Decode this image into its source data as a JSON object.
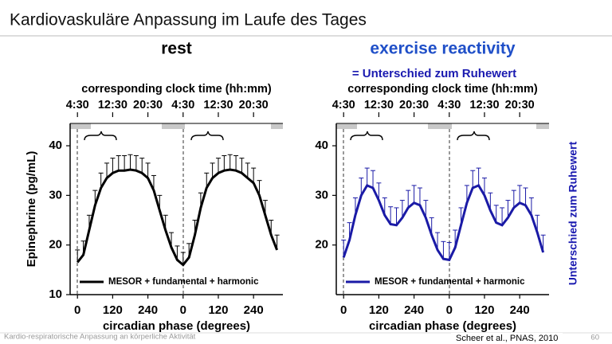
{
  "header": {
    "title": "Kardiovaskuläre Anpassung im Laufe des Tages"
  },
  "annotations": {
    "equals_note": "= Unterschied zum Ruhewert",
    "side_note": "Unterschied zum Ruhewert"
  },
  "footer": {
    "course": "Kardio-respiratorische Anpassung an körperliche Aktivität",
    "citation": "Scheer et al., PNAS, 2010",
    "page": "60"
  },
  "chart_data": [
    {
      "type": "line",
      "title": "rest",
      "title_color": "#000000",
      "top_axis_label": "corresponding clock time (hh:mm)",
      "xlabel": "circadian phase (degrees)",
      "ylabel": "Epinephrine (pg/mL)",
      "x": [
        0,
        20,
        40,
        60,
        80,
        100,
        120,
        140,
        160,
        180,
        200,
        220,
        240,
        260,
        280,
        300,
        320,
        340,
        360,
        380,
        400,
        420,
        440,
        460,
        480,
        500,
        520,
        540,
        560,
        580,
        600,
        620,
        640,
        660,
        680
      ],
      "xlim": [
        -25,
        700
      ],
      "xticks": [
        0,
        120,
        240,
        {
          "value": 360,
          "label": "0"
        },
        {
          "value": 480,
          "label": "120"
        },
        {
          "value": 600,
          "label": "240"
        }
      ],
      "xticks_top": [
        {
          "value": 0,
          "label": "4:30"
        },
        {
          "value": 120,
          "label": "12:30"
        },
        {
          "value": 240,
          "label": "20:30"
        },
        {
          "value": 360,
          "label": "4:30"
        },
        {
          "value": 480,
          "label": "12:30"
        },
        {
          "value": 600,
          "label": "20:30"
        }
      ],
      "ylim": [
        10,
        44.5
      ],
      "yticks": [
        10,
        20,
        30,
        40
      ],
      "legend": "lower left",
      "series": [
        {
          "name": "MESOR + fundamental + harmonic",
          "color": "#000000",
          "values": [
            16.5,
            18,
            23,
            28,
            31.5,
            33.5,
            34.5,
            35,
            35,
            35.2,
            35,
            34.5,
            33.5,
            31,
            27,
            23,
            19.5,
            17,
            16,
            17.5,
            22,
            27.5,
            31.5,
            33.5,
            34.5,
            35,
            35.2,
            35,
            34.5,
            33.5,
            32.5,
            30,
            26,
            22,
            19
          ],
          "errors": [
            2.5,
            2.8,
            3,
            3,
            3,
            3,
            3,
            3,
            3,
            3,
            3,
            3,
            3,
            3,
            3,
            3,
            3,
            2.8,
            2.5,
            2.8,
            3,
            3,
            3,
            3,
            3,
            3,
            3,
            3,
            3,
            3,
            3,
            3,
            3,
            3,
            3
          ]
        }
      ]
    },
    {
      "type": "line",
      "title": "exercise reactivity",
      "title_color": "#1f4fc8",
      "top_axis_label": "corresponding clock time (hh:mm)",
      "xlabel": "circadian phase (degrees)",
      "x": [
        0,
        20,
        40,
        60,
        80,
        100,
        120,
        140,
        160,
        180,
        200,
        220,
        240,
        260,
        280,
        300,
        320,
        340,
        360,
        380,
        400,
        420,
        440,
        460,
        480,
        500,
        520,
        540,
        560,
        580,
        600,
        620,
        640,
        660,
        680
      ],
      "xlim": [
        -25,
        700
      ],
      "xticks": [
        0,
        120,
        240,
        {
          "value": 360,
          "label": "0"
        },
        {
          "value": 480,
          "label": "120"
        },
        {
          "value": 600,
          "label": "240"
        }
      ],
      "xticks_top": [
        {
          "value": 0,
          "label": "4:30"
        },
        {
          "value": 120,
          "label": "12:30"
        },
        {
          "value": 240,
          "label": "20:30"
        },
        {
          "value": 360,
          "label": "4:30"
        },
        {
          "value": 480,
          "label": "12:30"
        },
        {
          "value": 600,
          "label": "20:30"
        }
      ],
      "ylim": [
        10,
        44.5
      ],
      "yticks": [
        20,
        30,
        40
      ],
      "legend": "lower left",
      "series": [
        {
          "name": "MESOR + fundamental + harmonic",
          "color": "#1a1aa6",
          "values": [
            17.5,
            21,
            26,
            30,
            32,
            31.5,
            29,
            26,
            24.2,
            24,
            25.5,
            27.5,
            28.5,
            28,
            25.5,
            22,
            19,
            17.2,
            17,
            19.5,
            24,
            28.5,
            31.5,
            32,
            30,
            27,
            24.5,
            24,
            25.5,
            27.5,
            28.5,
            28,
            26,
            22.5,
            18.5
          ],
          "errors": [
            3.5,
            3.5,
            3.5,
            3.5,
            3.5,
            3.5,
            3.5,
            3.5,
            3.5,
            3.5,
            3.5,
            3.5,
            3.5,
            3.5,
            3.5,
            3.5,
            3.5,
            3.5,
            3.5,
            3.5,
            3.5,
            3.5,
            3.5,
            3.5,
            3.5,
            3.5,
            3.5,
            3.5,
            3.5,
            3.5,
            3.5,
            3.5,
            3.5,
            3.5,
            3.5
          ]
        }
      ]
    }
  ]
}
